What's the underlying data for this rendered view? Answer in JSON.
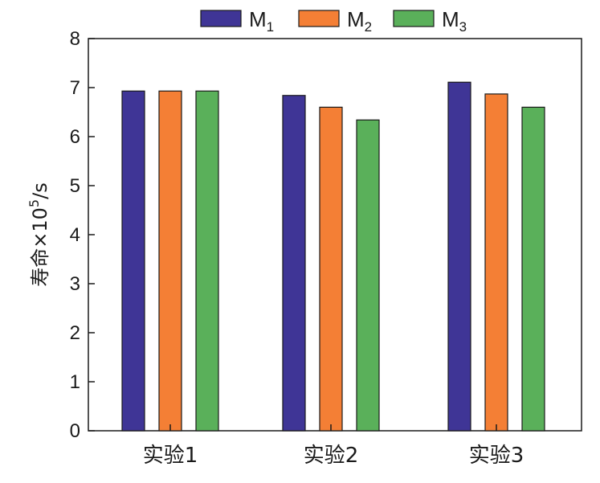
{
  "chart_data": {
    "type": "bar",
    "categories": [
      "实验1",
      "实验2",
      "实验3"
    ],
    "series": [
      {
        "name": "M",
        "sub": "1",
        "color": "#3f3596",
        "values": [
          6.93,
          6.84,
          7.11
        ]
      },
      {
        "name": "M",
        "sub": "2",
        "color": "#f47f35",
        "values": [
          6.93,
          6.6,
          6.87
        ]
      },
      {
        "name": "M",
        "sub": "3",
        "color": "#5ab05a",
        "values": [
          6.93,
          6.34,
          6.6
        ]
      }
    ],
    "ylabel": "寿命×10",
    "ylabel_sup": "5",
    "ylabel_unit": "/s",
    "ylim": [
      0,
      8
    ],
    "yticks": [
      "0",
      "1",
      "2",
      "3",
      "4",
      "5",
      "6",
      "7",
      "8"
    ],
    "legend_position": "top",
    "grid": false
  }
}
